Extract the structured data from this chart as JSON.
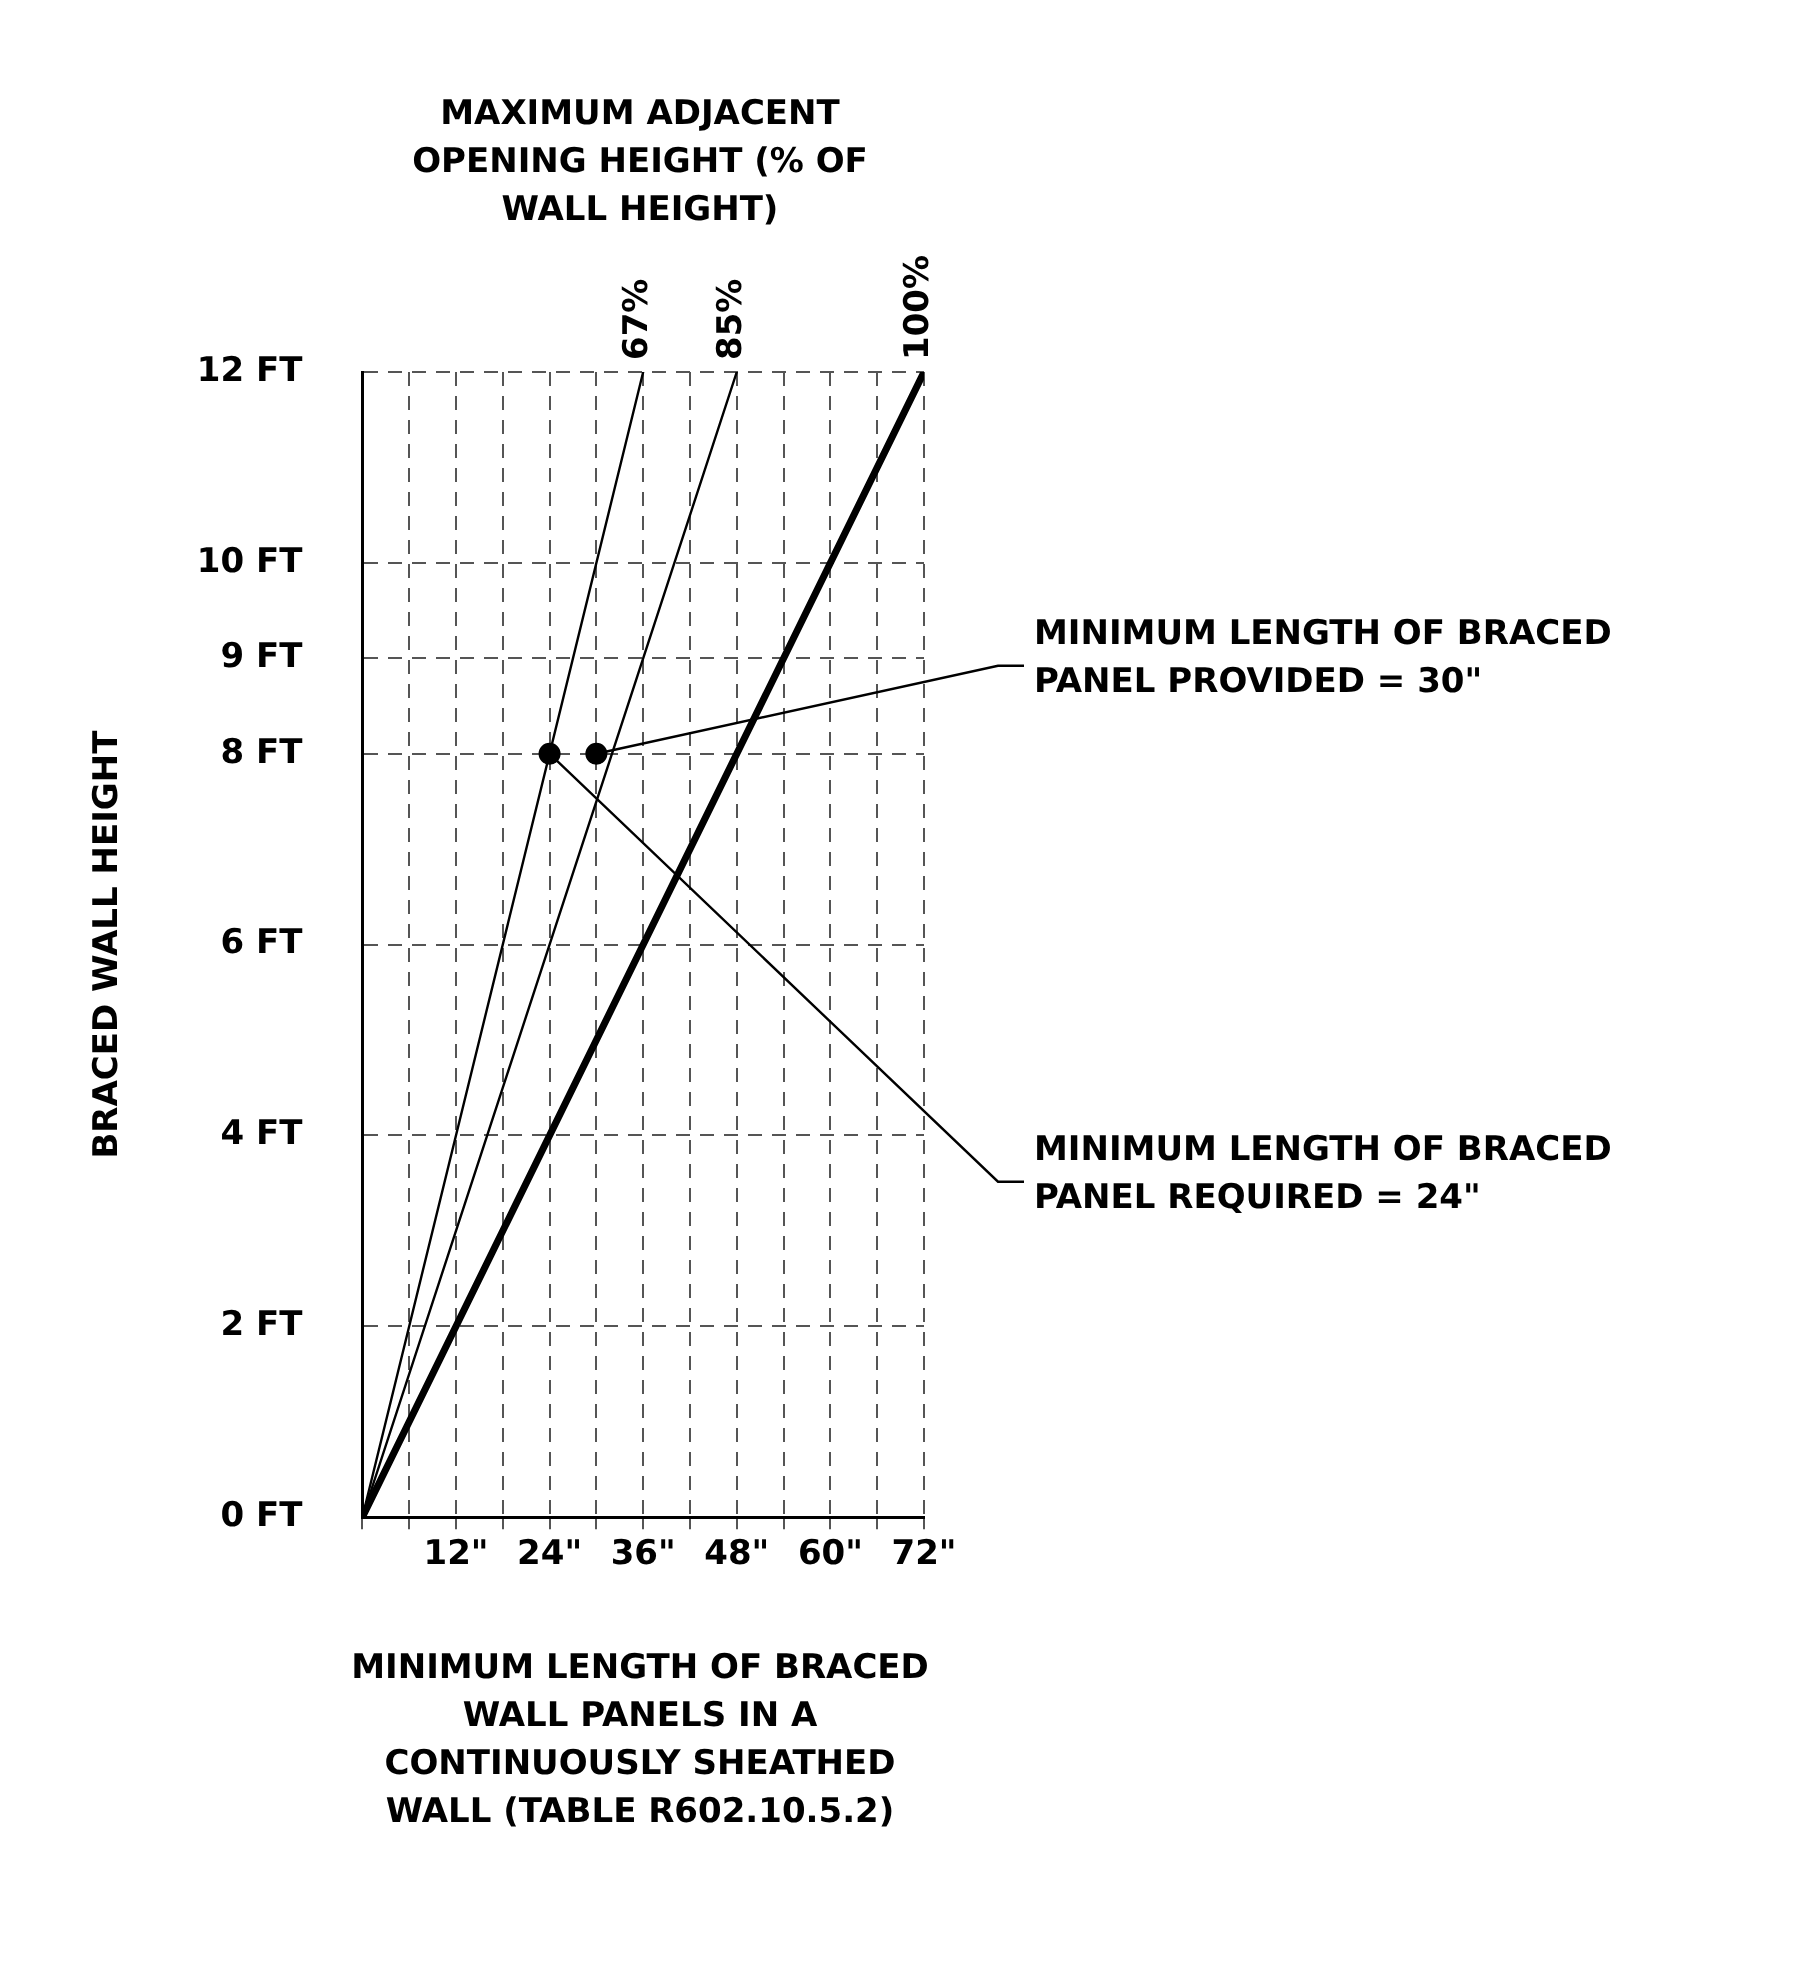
{
  "chart_data": {
    "type": "line",
    "legend_title": "MAXIMUM ADJACENT OPENING HEIGHT (% OF WALL HEIGHT)",
    "xlabel": "MINIMUM LENGTH OF BRACED WALL PANELS IN A CONTINUOUSLY SHEATHED WALL (TABLE R602.10.5.2)",
    "ylabel": "BRACED WALL HEIGHT",
    "xlim": [
      0,
      72
    ],
    "xticks": [
      {
        "value": 0,
        "label": null
      },
      {
        "value": 6,
        "label": null
      },
      {
        "value": 12,
        "label": "12\""
      },
      {
        "value": 18,
        "label": null
      },
      {
        "value": 24,
        "label": "24\""
      },
      {
        "value": 30,
        "label": null
      },
      {
        "value": 36,
        "label": "36\""
      },
      {
        "value": 42,
        "label": null
      },
      {
        "value": 48,
        "label": "48\""
      },
      {
        "value": 54,
        "label": null
      },
      {
        "value": 60,
        "label": "60\""
      },
      {
        "value": 66,
        "label": null
      },
      {
        "value": 72,
        "label": "72\""
      }
    ],
    "ylim": [
      0,
      12
    ],
    "yticks": [
      {
        "value": 0,
        "label": "0 FT"
      },
      {
        "value": 2,
        "label": "2 FT"
      },
      {
        "value": 4,
        "label": "4 FT"
      },
      {
        "value": 6,
        "label": "6 FT"
      },
      {
        "value": 8,
        "label": "8 FT"
      },
      {
        "value": 9,
        "label": "9 FT"
      },
      {
        "value": 10,
        "label": "10 FT"
      },
      {
        "value": 12,
        "label": "12 FT"
      }
    ],
    "grid": true,
    "legend": false,
    "marker": "none",
    "line_style": "solid",
    "series": [
      {
        "name": "67%",
        "color": "#000000",
        "x": [
          0,
          36
        ],
        "values": [
          0,
          12
        ]
      },
      {
        "name": "85%",
        "color": "#000000",
        "x": [
          0,
          48
        ],
        "values": [
          0,
          12
        ]
      },
      {
        "name": "100%",
        "color": "#000000",
        "x": [
          0,
          72
        ],
        "values": [
          0,
          12
        ]
      },
      {
        "type": "scatter",
        "marker": "circle",
        "color": "#000000",
        "x": [
          24,
          30
        ],
        "values": [
          8,
          8
        ]
      }
    ],
    "annotations": [
      {
        "text": "MINIMUM LENGTH OF BRACED PANEL PROVIDED = 30\"",
        "x": 30,
        "y": 8
      },
      {
        "text": "MINIMUM LENGTH OF BRACED PANEL REQUIRED = 24\"",
        "x": 24,
        "y": 8
      }
    ]
  }
}
